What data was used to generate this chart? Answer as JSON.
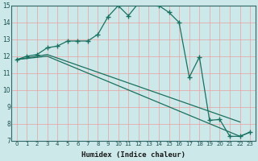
{
  "xlabel": "Humidex (Indice chaleur)",
  "ylabel": "",
  "xlim": [
    -0.5,
    23.5
  ],
  "ylim": [
    7,
    15
  ],
  "xticks": [
    0,
    1,
    2,
    3,
    4,
    5,
    6,
    7,
    8,
    9,
    10,
    11,
    12,
    13,
    14,
    15,
    16,
    17,
    18,
    19,
    20,
    21,
    22,
    23
  ],
  "yticks": [
    7,
    8,
    9,
    10,
    11,
    12,
    13,
    14,
    15
  ],
  "bg_color": "#cce8e8",
  "line_color": "#1a7060",
  "grid_color": "#e8a0a0",
  "series": [
    {
      "x": [
        0,
        1,
        2,
        3,
        4,
        5,
        6,
        7,
        8,
        9,
        10,
        11,
        12,
        13,
        14,
        15,
        16,
        17,
        18,
        19,
        20,
        21,
        22,
        23
      ],
      "y": [
        11.8,
        12.0,
        12.1,
        12.5,
        12.6,
        12.9,
        12.9,
        12.9,
        13.3,
        14.35,
        15.0,
        14.4,
        15.15,
        15.25,
        15.0,
        14.6,
        14.0,
        10.75,
        11.95,
        8.2,
        8.25,
        7.25,
        7.25,
        7.5
      ]
    },
    {
      "x": [
        0,
        3,
        22
      ],
      "y": [
        11.8,
        12.1,
        8.1
      ]
    },
    {
      "x": [
        0,
        3,
        22,
        23
      ],
      "y": [
        11.8,
        12.0,
        7.25,
        7.5
      ]
    }
  ]
}
